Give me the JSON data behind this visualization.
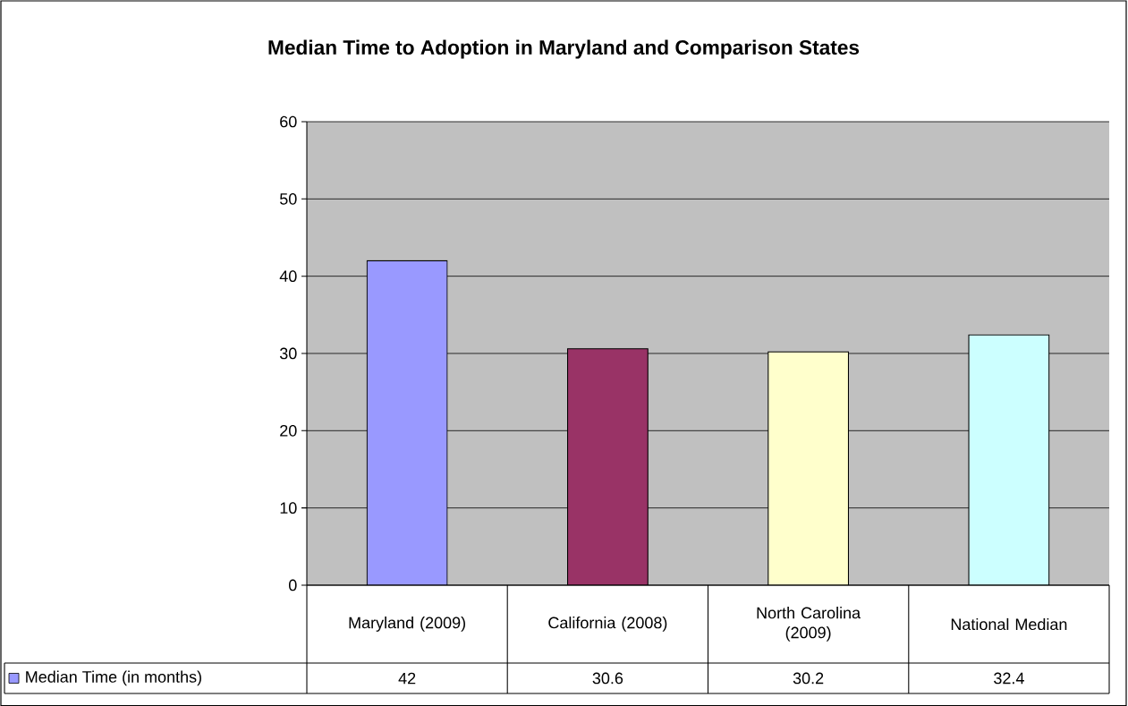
{
  "chart_data": {
    "type": "bar",
    "title": "Median Time to Adoption in Maryland and Comparison States",
    "categories": [
      "Maryland (2009)",
      "California (2008)",
      "North Carolina (2009)",
      "National Median"
    ],
    "series": [
      {
        "name": "Median Time (in months)",
        "colors": [
          "#9999ff",
          "#993366",
          "#ffffcc",
          "#ccffff"
        ],
        "values": [
          42,
          30.6,
          30.2,
          32.4
        ]
      }
    ],
    "ylim": [
      0,
      60
    ],
    "yticks": [
      0,
      10,
      20,
      30,
      40,
      50,
      60
    ],
    "grid": "y",
    "legend": "bottom",
    "data_labels": true
  }
}
